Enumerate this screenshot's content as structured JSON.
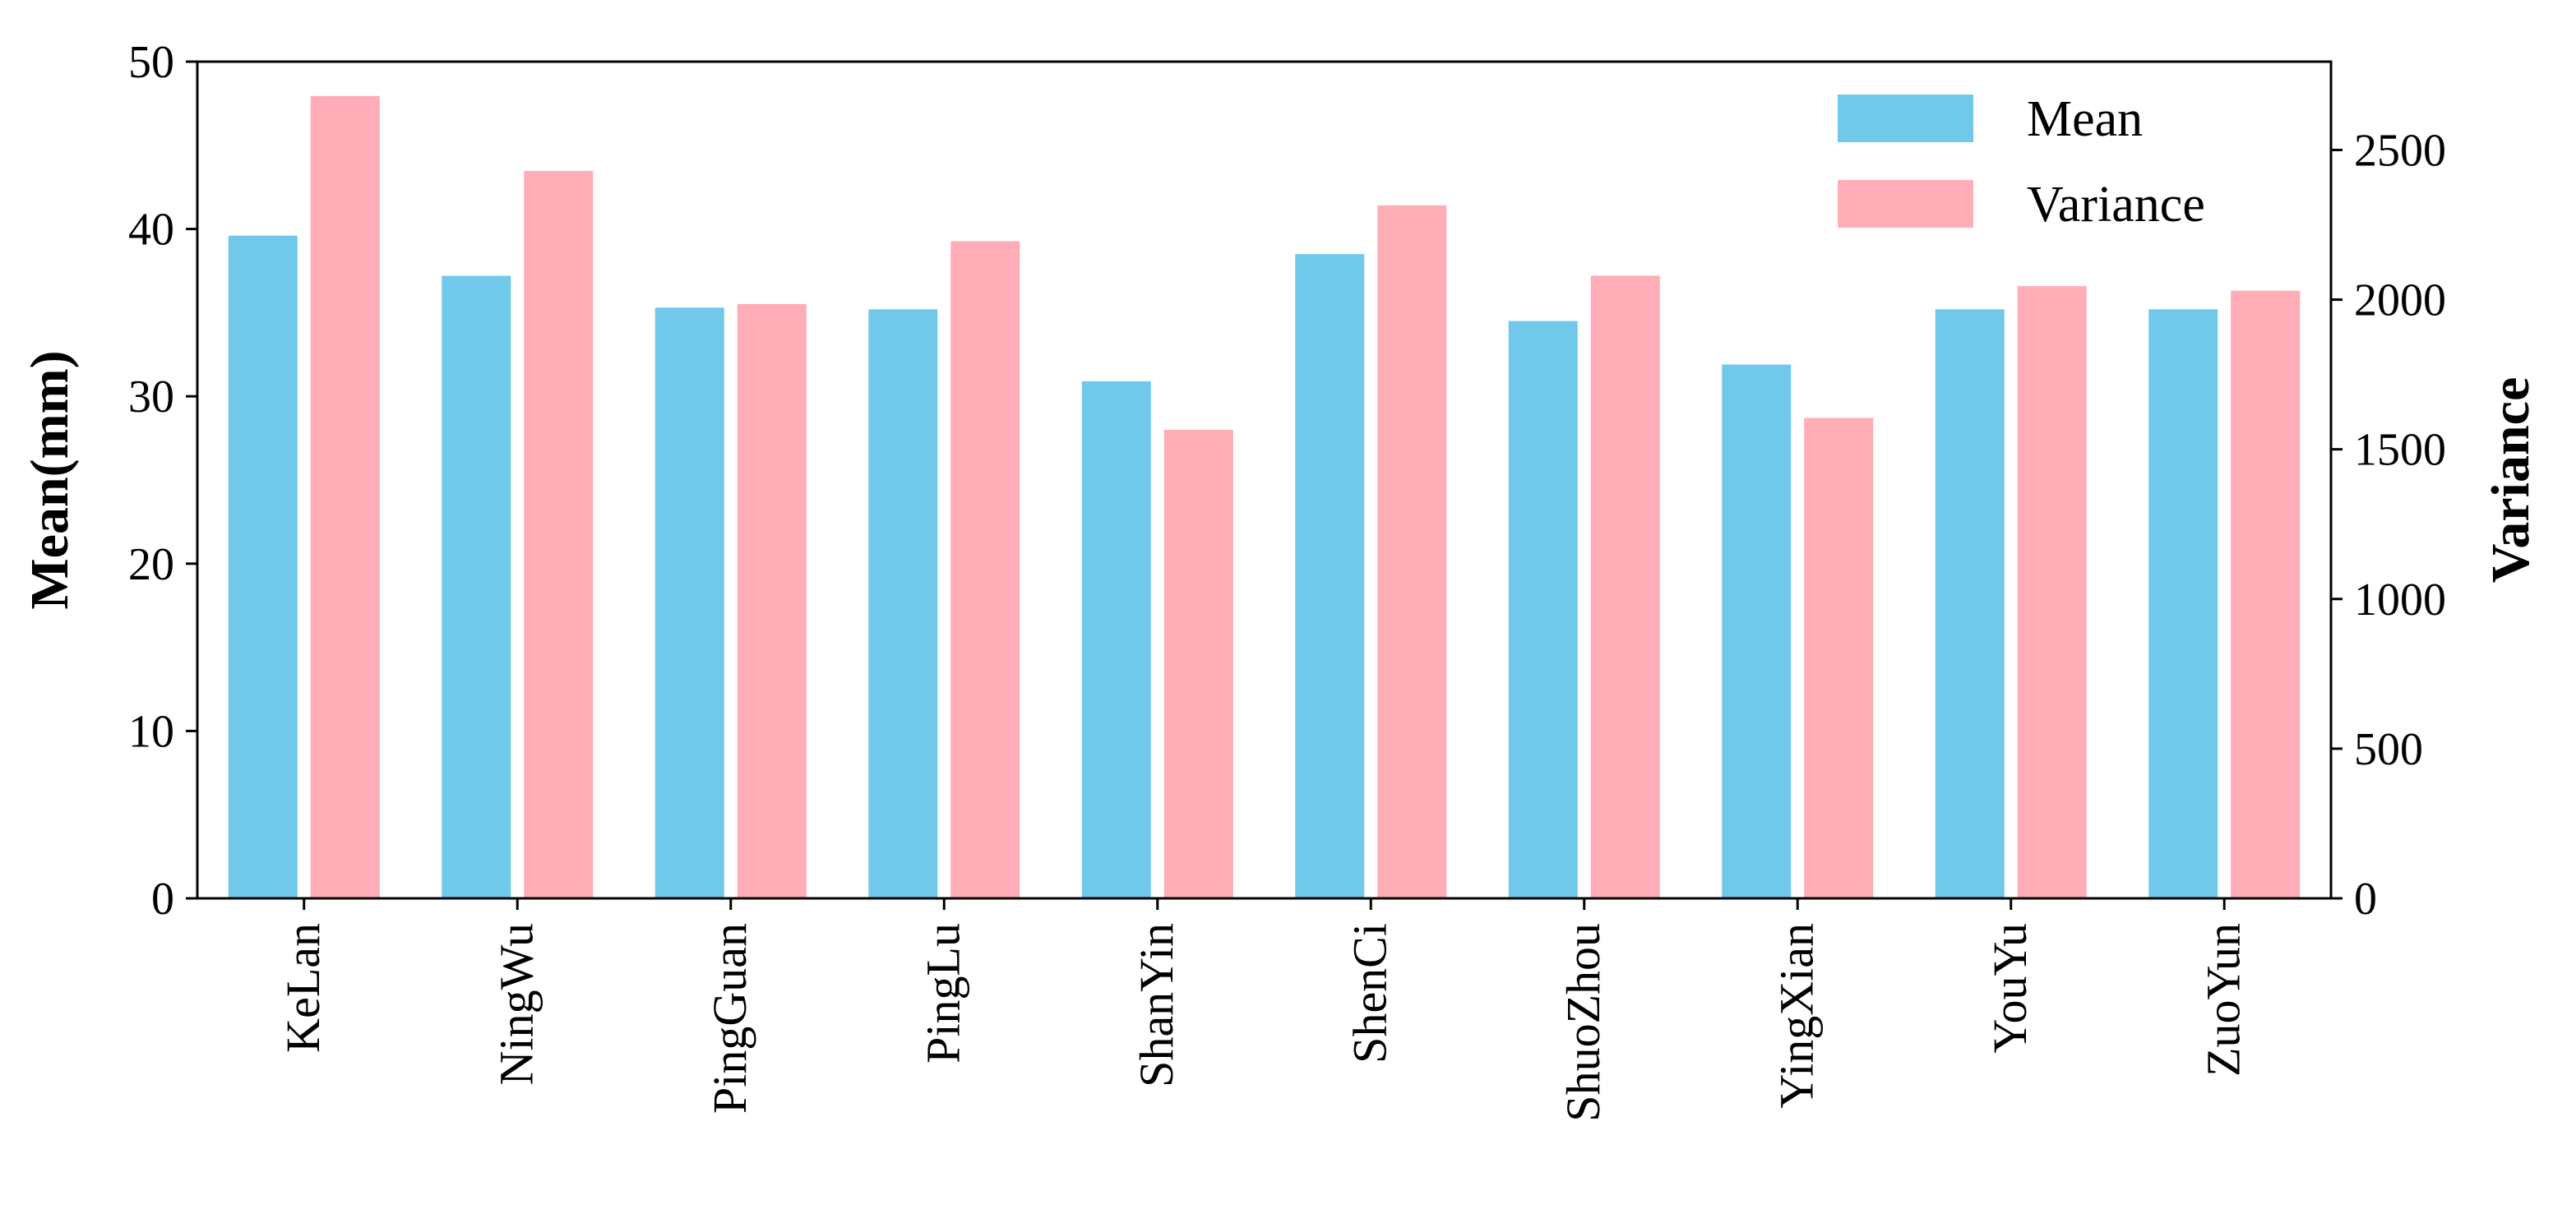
{
  "chart_data": {
    "type": "bar",
    "categories": [
      "KeLan",
      "NingWu",
      "PingGuan",
      "PingLu",
      "ShanYin",
      "ShenCi",
      "ShuoZhou",
      "YingXian",
      "YouYu",
      "ZuoYun"
    ],
    "series": [
      {
        "name": "Mean",
        "axis": "left",
        "color": "#70C9EA",
        "values": [
          39.6,
          37.2,
          35.3,
          35.2,
          30.9,
          38.5,
          34.5,
          31.9,
          35.2,
          35.2
        ]
      },
      {
        "name": "Variance",
        "axis": "right",
        "color": "#FFADB6",
        "values": [
          2680,
          2430,
          1985,
          2195,
          1565,
          2315,
          2080,
          1605,
          2045,
          2030
        ]
      }
    ],
    "ylabel": "Mean(mm)",
    "y2label": "Variance",
    "ylim": [
      0,
      50
    ],
    "y2lim": [
      0,
      2795
    ],
    "yticks": [
      0,
      10,
      20,
      30,
      40,
      50
    ],
    "y2ticks": [
      0,
      500,
      1000,
      1500,
      2000,
      2500
    ],
    "xlabel": "",
    "grid": false,
    "legend_position": "top-right"
  }
}
